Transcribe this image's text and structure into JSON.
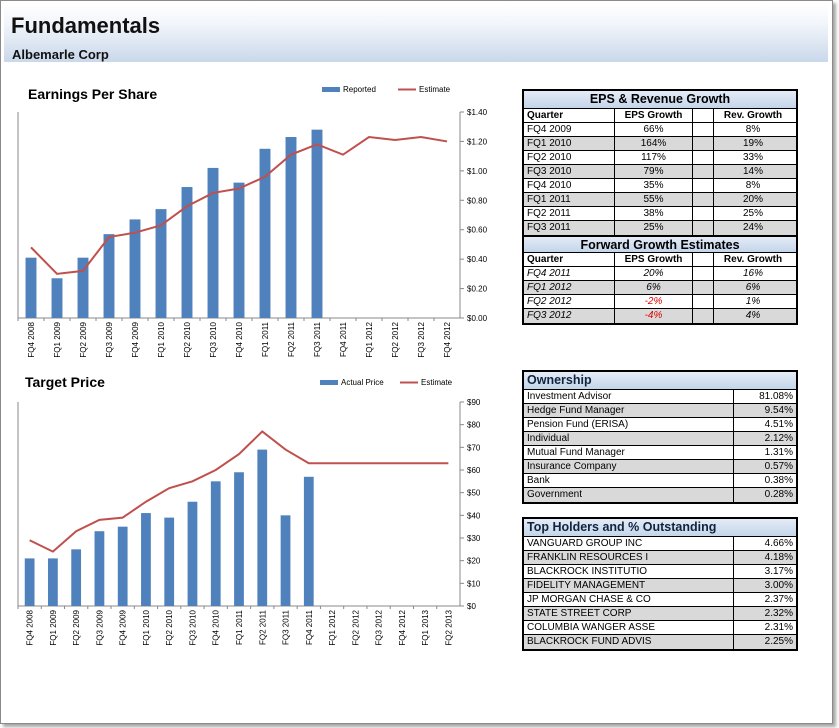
{
  "header": {
    "title": "Fundamentals",
    "company": "Albemarle Corp"
  },
  "colors": {
    "bar": "#4f81bd",
    "line": "#c0504d",
    "header_gradient": "#c9d8ea"
  },
  "chart_data": [
    {
      "type": "bar",
      "title": "Earnings Per Share",
      "categories": [
        "FQ4 2008",
        "FQ1 2009",
        "FQ2 2009",
        "FQ3 2009",
        "FQ4 2009",
        "FQ1 2010",
        "FQ2 2010",
        "FQ3 2010",
        "FQ4 2010",
        "FQ1 2011",
        "FQ2 2011",
        "FQ3 2011",
        "FQ4 2011",
        "FQ1 2012",
        "FQ2 2012",
        "FQ3 2012",
        "FQ4 2012"
      ],
      "series": [
        {
          "name": "Reported",
          "type": "bar",
          "values": [
            0.41,
            0.27,
            0.41,
            0.57,
            0.67,
            0.74,
            0.89,
            1.02,
            0.92,
            1.15,
            1.23,
            1.28,
            null,
            null,
            null,
            null,
            null
          ]
        },
        {
          "name": "Estimate",
          "type": "line",
          "values": [
            0.48,
            0.3,
            0.32,
            0.55,
            0.58,
            0.63,
            0.76,
            0.85,
            0.88,
            0.96,
            1.11,
            1.18,
            1.11,
            1.23,
            1.21,
            1.23,
            1.2
          ]
        }
      ],
      "yticks": [
        "$0.00",
        "$0.20",
        "$0.40",
        "$0.60",
        "$0.80",
        "$1.00",
        "$1.20",
        "$1.40"
      ],
      "ylim": [
        0,
        1.4
      ],
      "legend": "top"
    },
    {
      "type": "bar",
      "title": "Target Price",
      "categories": [
        "FQ4 2008",
        "FQ1 2009",
        "FQ2 2009",
        "FQ3 2009",
        "FQ4 2009",
        "FQ1 2010",
        "FQ2 2010",
        "FQ3 2010",
        "FQ4 2010",
        "FQ1 2011",
        "FQ2 2011",
        "FQ3 2011",
        "FQ4 2011",
        "FQ1 2012",
        "FQ2 2012",
        "FQ3 2012",
        "FQ4 2012",
        "FQ1 2013",
        "FQ2 2013"
      ],
      "series": [
        {
          "name": "Actual Price",
          "type": "bar",
          "values": [
            21,
            21,
            25,
            33,
            35,
            41,
            39,
            46,
            55,
            59,
            69,
            40,
            57,
            null,
            null,
            null,
            null,
            null,
            null
          ]
        },
        {
          "name": "Estimate",
          "type": "line",
          "values": [
            29,
            24,
            33,
            38,
            39,
            46,
            52,
            55,
            60,
            67,
            77,
            69,
            63,
            63,
            63,
            63,
            63,
            63,
            63
          ]
        }
      ],
      "yticks": [
        "$0",
        "$10",
        "$20",
        "$30",
        "$40",
        "$50",
        "$60",
        "$70",
        "$80",
        "$90"
      ],
      "ylim": [
        0,
        90
      ],
      "legend": "top"
    }
  ],
  "eps_growth": {
    "title": "EPS & Revenue Growth",
    "columns": [
      "Quarter",
      "EPS Growth",
      "Rev. Growth"
    ],
    "rows": [
      [
        "FQ4 2009",
        "66%",
        "8%"
      ],
      [
        "FQ1 2010",
        "164%",
        "19%"
      ],
      [
        "FQ2 2010",
        "117%",
        "33%"
      ],
      [
        "FQ3 2010",
        "79%",
        "14%"
      ],
      [
        "FQ4 2010",
        "35%",
        "8%"
      ],
      [
        "FQ1 2011",
        "55%",
        "20%"
      ],
      [
        "FQ2 2011",
        "38%",
        "25%"
      ],
      [
        "FQ3 2011",
        "25%",
        "24%"
      ]
    ]
  },
  "forward_growth": {
    "title": "Forward Growth Estimates",
    "columns": [
      "Quarter",
      "EPS Growth",
      "Rev. Growth"
    ],
    "rows": [
      [
        "FQ4 2011",
        "20%",
        "16%"
      ],
      [
        "FQ1 2012",
        "6%",
        "6%"
      ],
      [
        "FQ2 2012",
        "-2%",
        "1%"
      ],
      [
        "FQ3 2012",
        "-4%",
        "4%"
      ]
    ]
  },
  "ownership": {
    "title": "Ownership",
    "rows": [
      [
        "Investment Advisor",
        "81.08%"
      ],
      [
        "Hedge Fund Manager",
        "9.54%"
      ],
      [
        "Pension Fund (ERISA)",
        "4.51%"
      ],
      [
        "Individual",
        "2.12%"
      ],
      [
        "Mutual Fund Manager",
        "1.31%"
      ],
      [
        "Insurance Company",
        "0.57%"
      ],
      [
        "Bank",
        "0.38%"
      ],
      [
        "Government",
        "0.28%"
      ]
    ]
  },
  "holders": {
    "title": "Top Holders and % Outstanding",
    "rows": [
      [
        "VANGUARD GROUP INC",
        "4.66%"
      ],
      [
        "FRANKLIN RESOURCES I",
        "4.18%"
      ],
      [
        "BLACKROCK INSTITUTIO",
        "3.17%"
      ],
      [
        "FIDELITY MANAGEMENT",
        "3.00%"
      ],
      [
        "JP MORGAN CHASE & CO",
        "2.37%"
      ],
      [
        "STATE STREET CORP",
        "2.32%"
      ],
      [
        "COLUMBIA WANGER ASSE",
        "2.31%"
      ],
      [
        "BLACKROCK FUND ADVIS",
        "2.25%"
      ]
    ]
  }
}
